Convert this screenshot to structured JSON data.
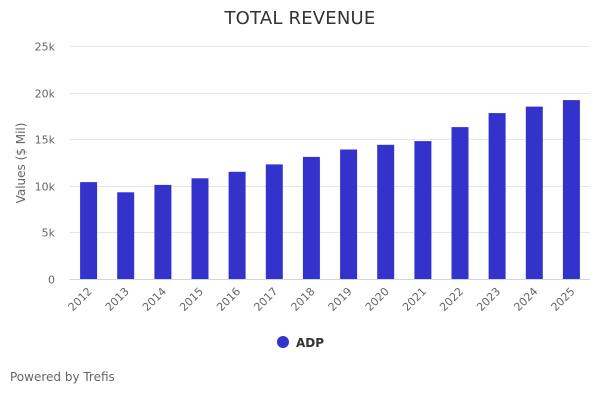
{
  "chart_data": {
    "type": "bar",
    "title": "TOTAL REVENUE",
    "xlabel": "",
    "ylabel": "Values ($ Mil)",
    "ylim": [
      0,
      25000
    ],
    "yticks": [
      0,
      5000,
      10000,
      15000,
      20000,
      25000
    ],
    "ytick_labels": [
      "0",
      "5k",
      "10k",
      "15k",
      "20k",
      "25k"
    ],
    "grid": true,
    "legend_position": "bottom-center",
    "categories": [
      "2012",
      "2013",
      "2014",
      "2015",
      "2016",
      "2017",
      "2018",
      "2019",
      "2020",
      "2021",
      "2022",
      "2023",
      "2024",
      "2025"
    ],
    "series": [
      {
        "name": "ADP",
        "color": "#3333cc",
        "values": [
          10400,
          9300,
          10100,
          10800,
          11500,
          12300,
          13100,
          13900,
          14400,
          14800,
          16300,
          17800,
          18500,
          19200
        ]
      }
    ]
  },
  "footer": {
    "credit": "Powered by Trefis"
  },
  "colors": {
    "bar": "#3333cc",
    "grid": "#e6e6e6",
    "axis": "#ccd6eb",
    "text": "#666666",
    "title": "#333333"
  }
}
